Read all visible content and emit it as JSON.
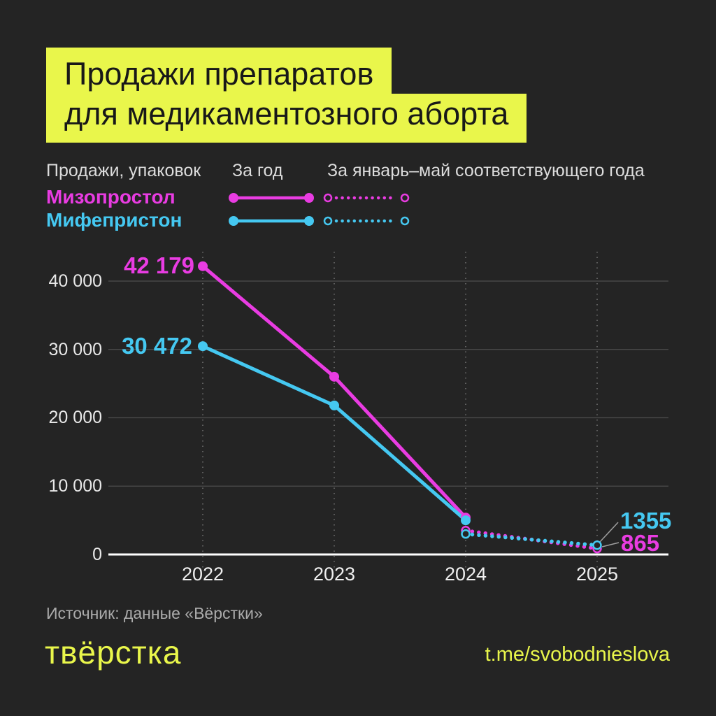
{
  "title": {
    "line1": "Продажи препаратов",
    "line2": "для медикаментозного аборта"
  },
  "legend": {
    "col_units": "Продажи, упаковок",
    "col_annual": "За год",
    "col_janmay": "За январь–май соответствующего года",
    "series": [
      {
        "name": "Мизопростол",
        "color": "#e93ce2"
      },
      {
        "name": "Мифепристон",
        "color": "#45c8f1"
      }
    ]
  },
  "chart_data": {
    "type": "line",
    "title": "Продажи препаратов для медикаментозного аборта",
    "ylabel": "Продажи, упаковок",
    "x_ticks": [
      "2022",
      "2023",
      "2024",
      "2025"
    ],
    "y_ticks": [
      "40 000",
      "30 000",
      "20 000",
      "10 000",
      "0"
    ],
    "ylim": [
      0,
      45000
    ],
    "grid": true,
    "legend_position": "top",
    "series": [
      {
        "name": "Мизопростол — за год",
        "style": "solid",
        "color": "#e93ce2",
        "values": [
          42179,
          26000,
          5400,
          null
        ]
      },
      {
        "name": "Мифепристон — за год",
        "style": "solid",
        "color": "#45c8f1",
        "values": [
          30472,
          21800,
          5000,
          null
        ]
      },
      {
        "name": "Мизопростол — за январь–май",
        "style": "dotted",
        "color": "#e93ce2",
        "values": [
          null,
          null,
          3500,
          865
        ]
      },
      {
        "name": "Мифепристон — за январь–май",
        "style": "dotted",
        "color": "#45c8f1",
        "values": [
          null,
          null,
          3000,
          1355
        ]
      }
    ],
    "point_labels": [
      {
        "text": "42 179",
        "series": "Мизопростол",
        "x": "2022"
      },
      {
        "text": "30 472",
        "series": "Мифепристон",
        "x": "2022"
      },
      {
        "text": "1355",
        "series": "Мифепристон",
        "x": "2025"
      },
      {
        "text": "865",
        "series": "Мизопростол",
        "x": "2025"
      }
    ]
  },
  "source": "Источник: данные «Вёрстки»",
  "footer": {
    "logo": "твёрстка",
    "link": "t.me/svobodnieslova"
  },
  "colors": {
    "background": "#242424",
    "accent_yellow": "#e9f64b",
    "magenta": "#e93ce2",
    "cyan": "#45c8f1",
    "grid": "#4d4d4d",
    "vertical_tick": "#7a7a7a",
    "baseline": "#ffffff",
    "callout": "#9f9f9f"
  }
}
